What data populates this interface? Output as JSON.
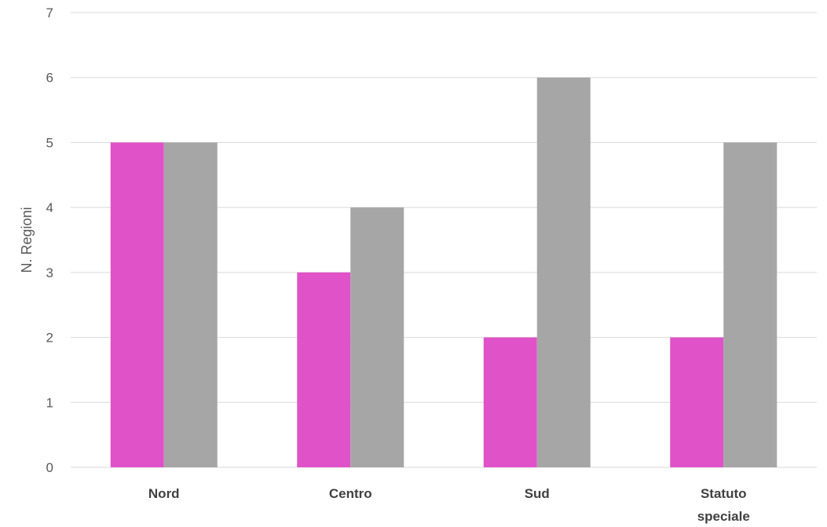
{
  "chart_data": {
    "type": "bar",
    "title": "",
    "xlabel": "",
    "ylabel": "N. Regioni",
    "categories": [
      [
        "Nord"
      ],
      [
        "Centro"
      ],
      [
        "Sud"
      ],
      [
        "Statuto",
        "speciale"
      ]
    ],
    "series": [
      {
        "color": "#e052c8",
        "values": [
          5,
          3,
          2,
          2
        ]
      },
      {
        "color": "#a6a6a6",
        "values": [
          5,
          4,
          6,
          5
        ]
      }
    ],
    "ylim": [
      0,
      7
    ],
    "yticks": [
      0,
      1,
      2,
      3,
      4,
      5,
      6,
      7
    ],
    "grid": true,
    "legend": "none"
  }
}
